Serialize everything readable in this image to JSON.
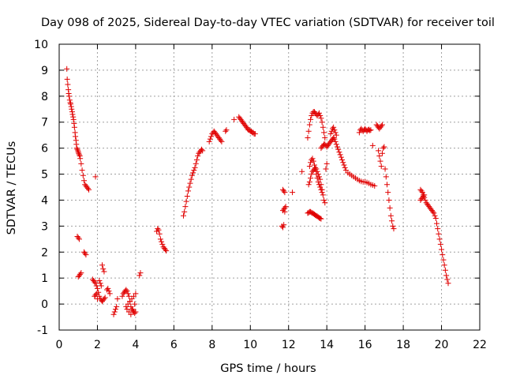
{
  "chart_data": {
    "type": "scatter",
    "title": "Day 098 of 2025, Sidereal Day-to-day VTEC variation (SDTVAR) for receiver toil",
    "xlabel": "GPS time / hours",
    "ylabel": "SDTVAR / TECUs",
    "xlim": [
      0,
      22
    ],
    "ylim": [
      -1,
      10
    ],
    "xticks": [
      "0",
      "2",
      "4",
      "6",
      "8",
      "10",
      "12",
      "14",
      "16",
      "18",
      "20",
      "22"
    ],
    "yticks": [
      "-1",
      "0",
      "1",
      "2",
      "3",
      "4",
      "5",
      "6",
      "7",
      "8",
      "9",
      "10"
    ],
    "grid": true,
    "marker": "+",
    "color": "#e00000",
    "series": [
      {
        "name": "SDTVAR",
        "x": [
          0.4,
          0.42,
          0.45,
          0.48,
          0.5,
          0.52,
          0.55,
          0.58,
          0.6,
          0.63,
          0.65,
          0.68,
          0.7,
          0.73,
          0.75,
          0.78,
          0.8,
          0.83,
          0.85,
          0.88,
          0.9,
          0.92,
          0.95,
          0.98,
          1.0,
          1.02,
          1.05,
          1.08,
          1.1,
          1.15,
          1.2,
          1.25,
          1.3,
          1.35,
          1.4,
          1.45,
          1.5,
          1.55,
          1.9,
          0.95,
          1.0,
          1.05,
          1.0,
          1.05,
          1.1,
          1.15,
          1.3,
          1.35,
          1.4,
          1.75,
          1.8,
          1.85,
          1.9,
          1.95,
          2.0,
          2.05,
          2.1,
          2.15,
          2.2,
          2.25,
          2.3,
          2.35,
          2.4,
          2.25,
          2.3,
          2.35,
          1.85,
          1.9,
          1.95,
          2.0,
          2.1,
          2.15,
          2.2,
          2.5,
          2.55,
          2.6,
          2.65,
          2.85,
          2.9,
          2.95,
          3.0,
          3.05,
          3.3,
          3.35,
          3.4,
          3.45,
          3.5,
          3.55,
          3.6,
          3.65,
          3.7,
          3.75,
          3.8,
          3.85,
          3.9,
          3.95,
          4.0,
          3.5,
          3.6,
          3.7,
          3.8,
          3.9,
          4.0,
          3.55,
          3.65,
          3.75,
          3.85,
          3.95,
          4.2,
          4.25,
          5.1,
          5.15,
          5.2,
          5.25,
          5.3,
          5.35,
          5.4,
          5.45,
          5.5,
          5.55,
          5.6,
          6.5,
          6.55,
          6.6,
          6.65,
          6.7,
          6.75,
          6.8,
          6.85,
          6.9,
          6.95,
          7.0,
          7.05,
          7.1,
          7.15,
          7.2,
          7.25,
          7.3,
          7.35,
          7.4,
          7.45,
          7.5,
          7.85,
          7.9,
          7.95,
          8.0,
          8.05,
          8.1,
          8.15,
          8.2,
          8.25,
          8.3,
          8.35,
          8.4,
          8.45,
          8.5,
          8.7,
          8.75,
          9.15,
          9.4,
          9.45,
          9.5,
          9.55,
          9.6,
          9.65,
          9.7,
          9.75,
          9.8,
          9.85,
          9.9,
          9.95,
          10.0,
          10.05,
          10.1,
          10.15,
          10.2,
          10.25,
          11.7,
          11.75,
          11.8,
          11.65,
          11.7,
          11.75,
          11.8,
          11.7,
          11.75,
          11.8,
          11.85,
          12.2,
          12.7,
          13.0,
          13.05,
          13.1,
          13.15,
          13.2,
          13.25,
          13.3,
          13.35,
          13.4,
          13.45,
          13.5,
          13.55,
          13.6,
          13.65,
          13.7,
          13.75,
          13.8,
          13.85,
          13.9,
          13.7,
          13.75,
          13.8,
          13.85,
          13.9,
          13.95,
          14.0,
          14.05,
          14.1,
          14.15,
          14.2,
          14.25,
          14.3,
          14.35,
          14.4,
          14.45,
          14.5,
          14.55,
          14.6,
          14.65,
          14.7,
          14.75,
          14.8,
          14.85,
          14.9,
          14.95,
          15.0,
          15.1,
          15.2,
          15.3,
          15.4,
          15.5,
          15.6,
          15.7,
          15.8,
          15.9,
          16.0,
          16.1,
          16.2,
          16.3,
          16.4,
          16.5,
          13.05,
          13.1,
          13.15,
          13.2,
          13.25,
          13.3,
          13.35,
          13.4,
          13.45,
          13.5,
          13.55,
          13.6,
          13.65,
          13.7,
          13.75,
          13.8,
          13.85,
          13.9,
          13.95,
          14.0,
          13.1,
          13.15,
          13.2,
          13.25,
          13.3,
          13.35,
          13.4,
          13.45,
          13.5,
          13.55,
          13.6,
          13.65,
          13.7,
          13.75,
          13.0,
          13.05,
          13.1,
          13.15,
          13.2,
          13.25,
          13.3,
          13.35,
          13.4,
          13.45,
          13.5,
          13.55,
          13.6,
          13.65,
          13.7,
          14.2,
          14.25,
          14.3,
          14.35,
          14.4,
          14.45,
          14.5,
          15.7,
          15.75,
          15.8,
          15.85,
          15.9,
          15.95,
          16.0,
          16.05,
          16.1,
          16.15,
          16.2,
          16.25,
          16.3,
          16.4,
          16.6,
          16.65,
          16.7,
          16.75,
          16.8,
          16.85,
          16.9,
          16.7,
          16.75,
          16.8,
          16.85,
          16.9,
          16.95,
          17.0,
          17.05,
          17.1,
          17.15,
          17.2,
          17.25,
          17.3,
          17.35,
          17.4,
          17.45,
          17.5,
          18.9,
          18.95,
          19.0,
          19.05,
          19.1,
          19.15,
          19.2,
          19.25,
          19.3,
          19.35,
          19.4,
          19.45,
          19.5,
          19.55,
          19.6,
          19.65,
          19.7,
          19.75,
          19.8,
          19.85,
          19.9,
          19.95,
          20.0,
          20.05,
          20.1,
          20.15,
          20.2,
          20.25,
          20.3,
          20.35,
          18.9,
          18.95,
          19.0,
          19.05,
          19.1
        ],
        "y": [
          9.05,
          8.65,
          8.45,
          8.25,
          8.1,
          8.0,
          7.85,
          7.75,
          7.7,
          7.6,
          7.5,
          7.4,
          7.3,
          7.2,
          7.1,
          6.95,
          6.8,
          6.6,
          6.45,
          6.3,
          6.15,
          6.0,
          5.95,
          5.9,
          5.85,
          5.8,
          5.75,
          5.7,
          5.6,
          5.4,
          5.15,
          4.95,
          4.75,
          4.6,
          4.55,
          4.5,
          4.45,
          4.4,
          4.9,
          2.6,
          2.55,
          2.5,
          1.05,
          1.1,
          1.15,
          1.2,
          2.0,
          1.95,
          1.9,
          0.95,
          0.9,
          0.85,
          0.8,
          0.7,
          0.6,
          0.45,
          0.3,
          0.2,
          0.15,
          0.1,
          0.15,
          0.2,
          0.25,
          1.5,
          1.35,
          1.25,
          0.3,
          0.35,
          0.4,
          0.2,
          0.9,
          0.8,
          0.7,
          0.55,
          0.6,
          0.5,
          0.4,
          -0.4,
          -0.3,
          -0.2,
          -0.1,
          0.2,
          0.3,
          0.4,
          0.45,
          0.5,
          0.55,
          0.5,
          0.4,
          0.3,
          0.1,
          -0.1,
          -0.2,
          -0.25,
          -0.3,
          -0.35,
          -0.3,
          -0.1,
          0.0,
          0.1,
          0.2,
          0.3,
          0.4,
          -0.2,
          -0.3,
          -0.4,
          -0.2,
          0.0,
          1.1,
          1.2,
          2.8,
          2.9,
          2.85,
          2.7,
          2.5,
          2.4,
          2.3,
          2.2,
          2.15,
          2.1,
          2.05,
          3.4,
          3.55,
          3.75,
          3.95,
          4.15,
          4.35,
          4.5,
          4.65,
          4.8,
          4.95,
          5.05,
          5.15,
          5.25,
          5.4,
          5.55,
          5.7,
          5.8,
          5.85,
          5.9,
          5.95,
          5.9,
          6.25,
          6.35,
          6.45,
          6.55,
          6.6,
          6.65,
          6.6,
          6.55,
          6.5,
          6.45,
          6.4,
          6.35,
          6.3,
          6.25,
          6.65,
          6.7,
          7.1,
          7.2,
          7.15,
          7.1,
          7.05,
          7.0,
          6.95,
          6.9,
          6.85,
          6.8,
          6.75,
          6.7,
          6.7,
          6.65,
          6.65,
          6.6,
          6.6,
          6.55,
          6.55,
          4.4,
          4.35,
          4.3,
          3.0,
          2.95,
          3.05,
          3.55,
          3.6,
          3.65,
          3.7,
          3.75,
          4.3,
          5.1,
          6.4,
          6.65,
          6.9,
          7.1,
          7.25,
          7.35,
          7.4,
          7.4,
          7.35,
          7.3,
          7.25,
          7.3,
          7.35,
          7.25,
          7.15,
          7.0,
          6.8,
          6.6,
          6.4,
          6.0,
          6.05,
          6.1,
          6.15,
          6.15,
          6.1,
          6.05,
          6.1,
          6.15,
          6.2,
          6.25,
          6.3,
          6.35,
          6.4,
          6.35,
          6.25,
          6.15,
          6.05,
          5.95,
          5.85,
          5.75,
          5.65,
          5.55,
          5.45,
          5.35,
          5.25,
          5.15,
          5.05,
          5.0,
          4.95,
          4.9,
          4.85,
          4.8,
          4.75,
          4.72,
          4.7,
          4.7,
          4.68,
          4.65,
          4.6,
          4.58,
          4.55,
          4.6,
          4.7,
          4.85,
          5.0,
          5.1,
          5.15,
          5.2,
          5.25,
          5.2,
          5.1,
          5.0,
          4.9,
          4.8,
          4.6,
          4.4,
          4.2,
          4.0,
          3.9,
          5.2,
          5.4,
          5.3,
          5.45,
          5.55,
          5.6,
          5.5,
          5.35,
          5.2,
          5.0,
          4.85,
          4.7,
          4.6,
          4.5,
          4.4,
          4.3,
          3.5,
          3.52,
          3.55,
          3.55,
          3.52,
          3.5,
          3.48,
          3.45,
          3.42,
          3.4,
          3.38,
          3.35,
          3.32,
          3.3,
          3.28,
          6.55,
          6.65,
          6.75,
          6.8,
          6.7,
          6.6,
          6.5,
          6.6,
          6.7,
          6.75,
          6.7,
          6.65,
          6.7,
          6.75,
          6.7,
          6.65,
          6.7,
          6.72,
          6.68,
          6.7,
          6.1,
          6.9,
          6.85,
          6.8,
          6.75,
          6.8,
          6.85,
          6.9,
          5.9,
          5.7,
          5.5,
          5.3,
          5.8,
          6.0,
          6.05,
          5.2,
          4.9,
          4.6,
          4.3,
          4.0,
          3.7,
          3.4,
          3.2,
          3.0,
          2.9,
          4.4,
          4.35,
          4.3,
          4.2,
          4.1,
          4.0,
          3.9,
          3.85,
          3.8,
          3.75,
          3.7,
          3.65,
          3.6,
          3.55,
          3.5,
          3.4,
          3.3,
          3.1,
          2.9,
          2.7,
          2.5,
          2.3,
          2.1,
          1.9,
          1.7,
          1.5,
          1.3,
          1.1,
          0.95,
          0.8,
          4.0,
          4.05,
          4.1,
          4.15,
          4.2
        ]
      }
    ]
  }
}
